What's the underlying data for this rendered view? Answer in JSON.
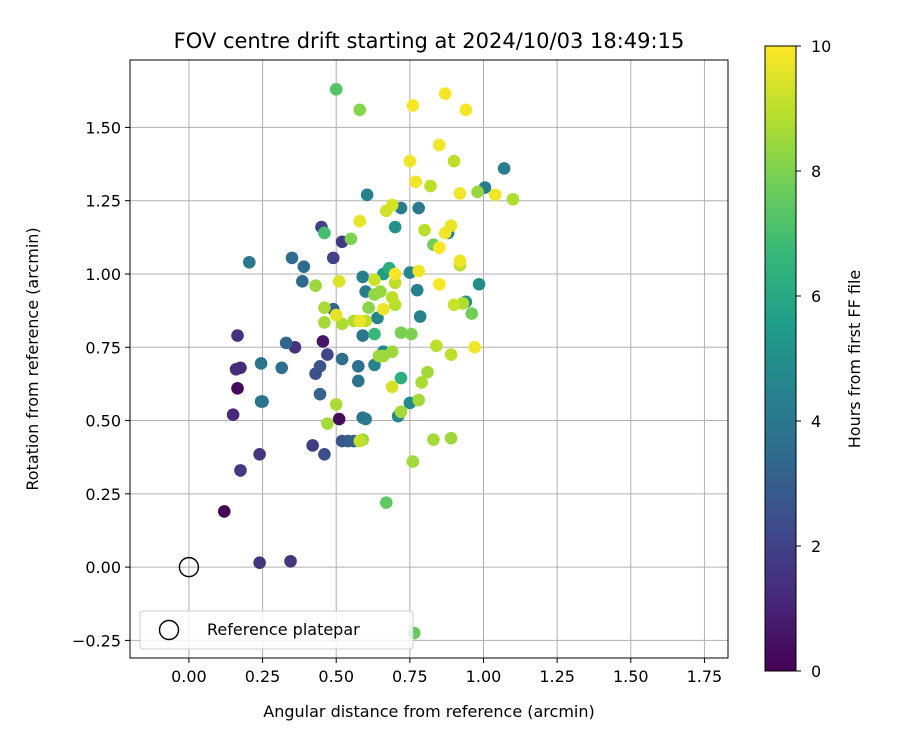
{
  "chart_data": {
    "type": "scatter",
    "title": "FOV centre drift starting at 2024/10/03 18:49:15",
    "xlabel": "Angular distance from reference (arcmin)",
    "ylabel": "Rotation from reference (arcmin)",
    "xlim": [
      -0.2,
      1.83
    ],
    "ylim": [
      -0.31,
      1.73
    ],
    "xticks": [
      0.0,
      0.25,
      0.5,
      0.75,
      1.0,
      1.25,
      1.5,
      1.75
    ],
    "xtick_labels": [
      "0.00",
      "0.25",
      "0.50",
      "0.75",
      "1.00",
      "1.25",
      "1.50",
      "1.75"
    ],
    "yticks": [
      -0.25,
      0.0,
      0.25,
      0.5,
      0.75,
      1.0,
      1.25,
      1.5
    ],
    "ytick_labels": [
      "−0.25",
      "0.00",
      "0.25",
      "0.50",
      "0.75",
      "1.00",
      "1.25",
      "1.50"
    ],
    "grid": true,
    "legend": {
      "position": "lower-left",
      "label": "Reference platepar"
    },
    "reference_point": {
      "x": 0.0,
      "y": 0.0
    },
    "colorbar": {
      "label": "Hours from first FF file",
      "range": [
        0,
        10
      ],
      "ticks": [
        0,
        2,
        4,
        6,
        8,
        10
      ],
      "tick_labels": [
        "0",
        "2",
        "4",
        "6",
        "8",
        "10"
      ],
      "colormap": "viridis",
      "stops": [
        "#440154",
        "#482878",
        "#3e4989",
        "#31688e",
        "#26828e",
        "#1f9e89",
        "#35b779",
        "#6ece58",
        "#b5de2b",
        "#fde725"
      ]
    },
    "points": [
      [
        0.12,
        0.19,
        0.1
      ],
      [
        0.165,
        0.61,
        0.2
      ],
      [
        0.51,
        0.505,
        0.3
      ],
      [
        0.455,
        0.77,
        0.6
      ],
      [
        0.15,
        0.52,
        1.1
      ],
      [
        0.16,
        0.675,
        1.3
      ],
      [
        0.175,
        0.68,
        1.2
      ],
      [
        0.165,
        0.79,
        1.4
      ],
      [
        0.24,
        0.015,
        1.5
      ],
      [
        0.345,
        0.02,
        1.6
      ],
      [
        0.24,
        0.385,
        1.6
      ],
      [
        0.175,
        0.33,
        1.7
      ],
      [
        0.36,
        0.75,
        1.5
      ],
      [
        0.42,
        0.415,
        1.8
      ],
      [
        0.52,
        1.11,
        1.8
      ],
      [
        0.45,
        1.16,
        2.0
      ],
      [
        0.49,
        1.055,
        2.0
      ],
      [
        0.47,
        0.725,
        2.2
      ],
      [
        0.46,
        0.385,
        2.4
      ],
      [
        0.43,
        0.66,
        2.5
      ],
      [
        0.445,
        0.685,
        2.6
      ],
      [
        0.52,
        0.43,
        2.7
      ],
      [
        0.54,
        0.43,
        2.9
      ],
      [
        0.56,
        0.43,
        3.0
      ],
      [
        0.49,
        0.88,
        3.0
      ],
      [
        0.445,
        0.59,
        3.2
      ],
      [
        0.33,
        0.765,
        3.3
      ],
      [
        0.35,
        1.055,
        3.4
      ],
      [
        0.385,
        0.975,
        3.4
      ],
      [
        0.39,
        1.025,
        3.5
      ],
      [
        0.315,
        0.68,
        3.6
      ],
      [
        0.245,
        0.565,
        3.7
      ],
      [
        0.245,
        0.695,
        3.8
      ],
      [
        0.25,
        0.565,
        3.9
      ],
      [
        0.205,
        1.04,
        4.0
      ],
      [
        0.52,
        0.71,
        3.6
      ],
      [
        0.575,
        0.685,
        3.7
      ],
      [
        0.575,
        0.635,
        3.8
      ],
      [
        0.59,
        0.79,
        3.9
      ],
      [
        0.59,
        0.51,
        3.8
      ],
      [
        0.6,
        0.505,
        4.0
      ],
      [
        0.6,
        0.94,
        4.2
      ],
      [
        0.59,
        0.99,
        4.3
      ],
      [
        0.605,
        1.27,
        4.4
      ],
      [
        0.63,
        0.69,
        4.5
      ],
      [
        0.64,
        0.85,
        4.6
      ],
      [
        0.66,
        0.735,
        4.7
      ],
      [
        0.72,
        1.225,
        4.2
      ],
      [
        0.78,
        1.225,
        4.1
      ],
      [
        0.775,
        0.945,
        4.4
      ],
      [
        0.785,
        0.855,
        4.5
      ],
      [
        0.75,
        1.005,
        4.6
      ],
      [
        0.71,
        0.515,
        4.7
      ],
      [
        0.75,
        0.56,
        4.8
      ],
      [
        0.7,
        1.16,
        5.0
      ],
      [
        0.88,
        1.14,
        4.4
      ],
      [
        0.93,
        0.9,
        4.6
      ],
      [
        0.94,
        0.905,
        5.0
      ],
      [
        0.985,
        0.965,
        4.9
      ],
      [
        1.005,
        1.295,
        4.2
      ],
      [
        1.07,
        1.36,
        4.2
      ],
      [
        0.66,
        1.0,
        5.5
      ],
      [
        0.68,
        1.02,
        6.2
      ],
      [
        0.72,
        0.645,
        6.3
      ],
      [
        0.63,
        0.795,
        6.7
      ],
      [
        0.46,
        1.14,
        7.0
      ],
      [
        0.5,
        1.63,
        7.3
      ],
      [
        0.67,
        0.22,
        7.5
      ],
      [
        0.765,
        -0.225,
        7.6
      ],
      [
        0.96,
        0.865,
        7.8
      ],
      [
        0.83,
        1.1,
        7.8
      ],
      [
        0.72,
        0.8,
        7.9
      ],
      [
        0.755,
        0.795,
        8.0
      ],
      [
        0.55,
        1.12,
        8.0
      ],
      [
        0.58,
        1.56,
        8.1
      ],
      [
        0.61,
        0.885,
        8.2
      ],
      [
        0.63,
        0.93,
        8.3
      ],
      [
        0.65,
        0.94,
        8.4
      ],
      [
        0.66,
        0.72,
        8.5
      ],
      [
        0.69,
        0.735,
        8.5
      ],
      [
        0.645,
        0.72,
        8.5
      ],
      [
        0.46,
        0.835,
        8.6
      ],
      [
        0.47,
        0.49,
        8.6
      ],
      [
        0.5,
        0.555,
        8.7
      ],
      [
        0.43,
        0.96,
        8.5
      ],
      [
        0.46,
        0.885,
        8.7
      ],
      [
        0.52,
        0.83,
        8.8
      ],
      [
        0.56,
        0.84,
        8.8
      ],
      [
        0.6,
        0.84,
        9.0
      ],
      [
        0.59,
        0.435,
        8.5
      ],
      [
        0.72,
        0.53,
        8.6
      ],
      [
        0.76,
        0.36,
        8.6
      ],
      [
        0.78,
        0.57,
        8.6
      ],
      [
        0.79,
        0.63,
        8.7
      ],
      [
        0.81,
        0.665,
        8.6
      ],
      [
        0.83,
        0.435,
        8.6
      ],
      [
        0.89,
        0.44,
        8.5
      ],
      [
        0.8,
        1.15,
        8.9
      ],
      [
        0.82,
        1.3,
        9.0
      ],
      [
        0.9,
        1.385,
        9.0
      ],
      [
        0.92,
        1.03,
        9.0
      ],
      [
        0.93,
        0.9,
        8.8
      ],
      [
        0.9,
        0.895,
        9.2
      ],
      [
        0.84,
        0.755,
        9.0
      ],
      [
        0.89,
        0.725,
        9.0
      ],
      [
        0.98,
        1.28,
        8.4
      ],
      [
        1.1,
        1.255,
        8.8
      ],
      [
        0.7,
        0.895,
        8.9
      ],
      [
        0.7,
        0.97,
        9.0
      ],
      [
        0.69,
        0.92,
        9.0
      ],
      [
        0.58,
        0.43,
        9.1
      ],
      [
        0.63,
        0.98,
        9.2
      ],
      [
        0.67,
        1.215,
        9.3
      ],
      [
        0.69,
        1.235,
        9.4
      ],
      [
        0.69,
        0.615,
        9.4
      ],
      [
        0.51,
        0.975,
        9.5
      ],
      [
        0.5,
        0.86,
        9.6
      ],
      [
        0.58,
        0.84,
        9.7
      ],
      [
        0.66,
        0.88,
        9.7
      ],
      [
        0.58,
        1.18,
        9.7
      ],
      [
        0.75,
        1.385,
        9.8
      ],
      [
        0.77,
        1.315,
        9.8
      ],
      [
        0.76,
        1.575,
        9.9
      ],
      [
        0.85,
        1.44,
        9.8
      ],
      [
        0.87,
        1.615,
        9.9
      ],
      [
        0.94,
        1.56,
        9.9
      ],
      [
        0.92,
        1.275,
        9.8
      ],
      [
        1.04,
        1.27,
        9.8
      ],
      [
        0.85,
        1.09,
        9.9
      ],
      [
        0.87,
        1.14,
        9.8
      ],
      [
        0.89,
        1.165,
        9.7
      ],
      [
        0.92,
        1.045,
        9.8
      ],
      [
        0.85,
        0.965,
        9.9
      ],
      [
        0.97,
        0.75,
        9.8
      ],
      [
        0.78,
        1.01,
        9.8
      ],
      [
        0.7,
        1.0,
        9.9
      ]
    ]
  }
}
